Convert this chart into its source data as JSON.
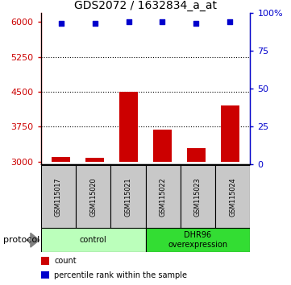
{
  "title": "GDS2072 / 1632834_a_at",
  "samples": [
    "GSM115017",
    "GSM115020",
    "GSM115021",
    "GSM115022",
    "GSM115023",
    "GSM115024"
  ],
  "counts": [
    3100,
    3075,
    4500,
    3680,
    3280,
    4200
  ],
  "percentile_ranks": [
    93,
    93,
    94,
    94,
    93,
    94
  ],
  "ylim_left": [
    2950,
    6200
  ],
  "ylim_right": [
    0,
    100
  ],
  "yticks_left": [
    3000,
    3750,
    4500,
    5250,
    6000
  ],
  "yticks_right": [
    0,
    25,
    50,
    75,
    100
  ],
  "ytick_labels_right": [
    "0",
    "25",
    "50",
    "75",
    "100%"
  ],
  "bar_color": "#cc0000",
  "scatter_color": "#0000cc",
  "sample_box_color": "#c8c8c8",
  "groups": [
    {
      "label": "control",
      "start": 0,
      "end": 3,
      "color": "#bbffbb"
    },
    {
      "label": "DHR96\noverexpression",
      "start": 3,
      "end": 6,
      "color": "#33dd33"
    }
  ],
  "left_axis_color": "#cc0000",
  "right_axis_color": "#0000cc",
  "bar_width": 0.55,
  "base_value": 3000,
  "legend_items": [
    {
      "color": "#cc0000",
      "label": "count"
    },
    {
      "color": "#0000cc",
      "label": "percentile rank within the sample"
    }
  ]
}
